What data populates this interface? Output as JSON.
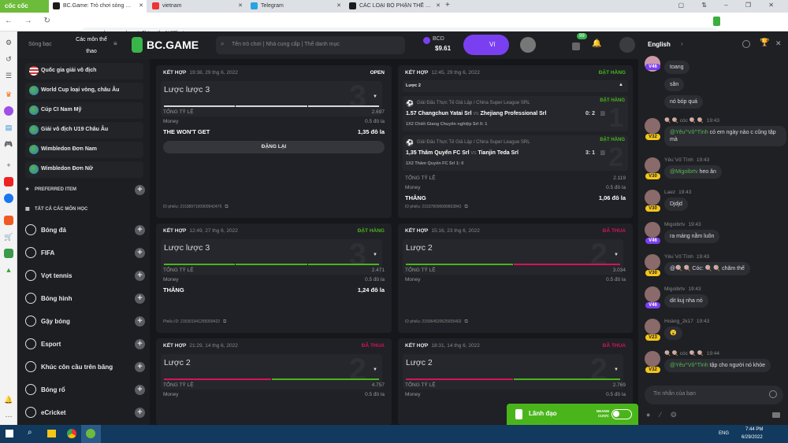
{
  "browser": {
    "brand": "cốc cốc",
    "tabs": [
      {
        "label": "BC.Game: Trò chơi sòng bạc",
        "color": "#1b1b1b"
      },
      {
        "label": "vietnam",
        "color": "#e33"
      },
      {
        "label": "Telegram",
        "color": "#2aa3e0"
      },
      {
        "label": "CÁC LOẠI BỘ PHẬN THẾ THAO",
        "color": "#1b1b1b"
      }
    ],
    "new_tab": "+",
    "url": "bc.game/sports?bt-path=%2Fbets"
  },
  "header": {
    "casino": "Sòng bạc",
    "sports": "Các môn thể thao",
    "logo": "BC.GAME",
    "search_placeholder": "Tên trò chơi | Nhà cung cấp | Thể danh mục",
    "currency": "BCD",
    "balance": "$9.61",
    "wallet": "Ví",
    "badge": "99",
    "language": "English"
  },
  "leagues": [
    "Quốc gia giải vô địch",
    "World Cup loại vòng, châu Âu",
    "Cúp CI Nam Mỹ",
    "Giải vô địch U19 Châu Âu",
    "Wimbledon Đơn Nam",
    "Wimbledon Đơn Nữ"
  ],
  "sections": {
    "preferred": "PREFERRED ITEM",
    "all": "TẤT CẢ CÁC MÔN HỌC"
  },
  "sports": [
    "Bóng đá",
    "FIFA",
    "Vợt tennis",
    "Bóng hình",
    "Gậy bóng",
    "Esport",
    "Khúc côn cầu trên băng",
    "Bóng rổ",
    "eCricket"
  ],
  "colors": {
    "green": "#4ab51b",
    "red": "#d4145a",
    "accent": "#7b3ff2"
  },
  "bets": [
    {
      "type": "KẾT HỢP",
      "date": "19:38, 29 thg 6, 2022",
      "status": "OPEN",
      "status_color": "#ffffff",
      "title": "Lược lược 3",
      "num": "3",
      "legs": [
        "#d8d8d8",
        "#d8d8d8",
        "#d8d8d8"
      ],
      "odds_label": "TỔNG TỶ LỆ",
      "odds": "2.697",
      "money_label": "Money",
      "money": "0.5 đô la",
      "result_label": "THE WON'T GET",
      "result": "1,35 đô la",
      "button": "ĐẶNG LẠI",
      "id": "ID phiếu: 215389710090094247б"
    },
    {
      "type": "KẾT HỢP",
      "date": "12:45, 29 thg 6, 2022",
      "status": "ĐẶT HÀNG",
      "status_color": "#4ab51b",
      "title": "Lược 2",
      "expanded": true,
      "matches": [
        {
          "league": "Giải Đấu Thực Tế Giả Lập / China Super League SRL",
          "status": "ĐẶT HÀNG",
          "odd": "1.57",
          "home": "Changchun Yatai Srl",
          "vs": "vs",
          "away": "Zhejiang Professional Srl",
          "score": "0: 2",
          "pick": "1X2 Chiết Giang Chuyên nghiệp Srl",
          "pick_score": "0: 1",
          "num": "1"
        },
        {
          "league": "Giải Đấu Thực Tế Giả Lập / China Super League SRL",
          "status": "ĐẶT HÀNG",
          "odd": "1,35",
          "home": "Thâm Quyến FC Srl",
          "vs": "vs",
          "away": "Tianjin Teda Srl",
          "score": "3: 1",
          "pick": "1X2 Thâm Quyến FC Srl",
          "pick_score": "1: 0",
          "num": "2"
        }
      ],
      "odds_label": "TỔNG TỶ LỆ",
      "odds": "2.119",
      "money_label": "Money",
      "money": "0.5 đô la",
      "result_label": "THẮNG",
      "result": "1,06 đô la",
      "id": "ID phiếu: 215378090089653842"
    },
    {
      "type": "KẾT HỢP",
      "date": "12:49, 27 thg 6, 2022",
      "status": "ĐẶT HÀNG",
      "status_color": "#4ab51b",
      "title": "Lược lược 3",
      "num": "3",
      "legs": [
        "#4ab51b",
        "#4ab51b",
        "#4ab51b"
      ],
      "odds_label": "TỔNG TỶ LỆ",
      "odds": "2.471",
      "money_label": "Money",
      "money": "0.5 đô la",
      "result_label": "THẮNG",
      "result": "1,24 đô la",
      "id": "Phiếu ID: 215301941255009422"
    },
    {
      "type": "KẾT HỢP",
      "date": "15:16, 23 thg 6, 2022",
      "status": "ĐÃ THUA",
      "status_color": "#d4145a",
      "title": "Lược 2",
      "num": "2",
      "legs": [
        "#4ab51b",
        "#d4145a"
      ],
      "odds_label": "TỔNG TỶ LỆ",
      "odds": "3.034",
      "money_label": "Money",
      "money": "0.5 đô la",
      "id": "ID phiếu: 215064520625935402"
    },
    {
      "type": "KẾT HỢP",
      "date": "21:29, 14 thg 6, 2022",
      "status": "ĐÃ THUA",
      "status_color": "#d4145a",
      "title": "Lược 2",
      "num": "2",
      "legs": [
        "#d4145a",
        "#4ab51b"
      ],
      "odds_label": "TỔNG TỶ LỆ",
      "odds": "4.757",
      "money_label": "Money",
      "money": "0.5 đô la"
    },
    {
      "type": "KẾT HỢP",
      "date": "18:31, 14 thg 6, 2022",
      "status": "ĐÃ THUA",
      "status_color": "#d4145a",
      "title": "Lược 2",
      "num": "2",
      "legs": [
        "#d4145a",
        "#4ab51b"
      ],
      "odds_label": "TỔNG TỶ LỆ",
      "odds": "2.769",
      "money_label": "Money",
      "money": "0.5 đô la"
    }
  ],
  "leader": {
    "label": "Lãnh đạo",
    "quick": "NHANH CƯỢC"
  },
  "chat": {
    "messages": [
      {
        "level": "V46",
        "purple": true,
        "lines": [
          "toang",
          "sân",
          "nó bóp quá"
        ]
      },
      {
        "user": "🍭 🍭 cóc 🍭 🍭",
        "time": "19:43",
        "level": "V32",
        "mention": "@Yêu^Vô^Tình",
        "text": " có em ngày nào c cũng tập mà"
      },
      {
        "user": "Yêu`Vô`Tình",
        "time": "19:43",
        "level": "V30",
        "mention": "@Migoibrtv",
        "text": " heo ăn"
      },
      {
        "user": "Laez",
        "time": "19:43",
        "level": "V30",
        "text": "Djdjd"
      },
      {
        "user": "Migoibrtv",
        "time": "19:43",
        "level": "V46",
        "purple": true,
        "text": "ra máng nằm luôn"
      },
      {
        "user": "Yêu`Vô`Tình",
        "time": "19:43",
        "level": "V30",
        "text": "@🍭 🍭 Cóc: 🍭 🍭  chăm thế"
      },
      {
        "user": "Migoibrtv",
        "time": "19:43",
        "level": "V46",
        "purple": true,
        "text": "dit kuj nha nó"
      },
      {
        "user": "Hoàng_2k17",
        "time": "19:43",
        "level": "V23",
        "text": "😮"
      },
      {
        "user": "🍭 🍭 cóc 🍭 🍭",
        "time": "19:44",
        "level": "V32",
        "mention": "@Yêu^Vô^Tình",
        "text": " tập cho người nó khỏe"
      }
    ],
    "placeholder": "Tin nhắn của bạn"
  },
  "taskbar": {
    "lang": "ENG",
    "time": "7:44 PM",
    "date": "6/29/2022"
  }
}
